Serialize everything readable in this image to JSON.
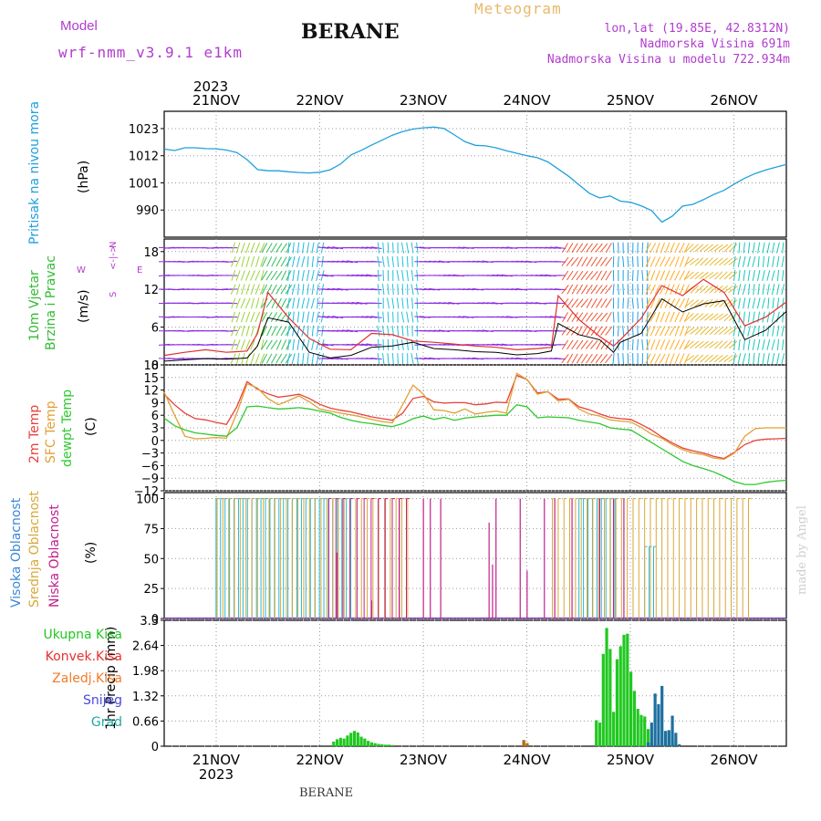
{
  "header": {
    "model_label": "Model",
    "model_run": "wrf-nmm_v3.9.1  e1km",
    "station": "BERANE",
    "meteogram": "Meteogram",
    "coords": "lon,lat (19.85E, 42.8312N)",
    "elevation": "Nadmorska Visina 691m",
    "model_elevation": "Nadmorska Visina u modelu 722.934m"
  },
  "footer": {
    "station": "BERANE",
    "credit": "made by Angel"
  },
  "colors": {
    "pressure": "#1fa0dc",
    "wind_title": "#33bb33",
    "dir_legend": "#b13ccf",
    "temp2m": "#e8403a",
    "sfc": "#e0a035",
    "dewpt": "#2ec82e",
    "high_cloud": "#2ab8d0",
    "mid_cloud": "#d8a838",
    "low_cloud": "#c0208c",
    "total": "#20c820",
    "convective": "#e83030",
    "freezing": "#f07c28",
    "snow": "#4848e0",
    "hail": "#20a8a0"
  },
  "chart_data": [
    {
      "type": "line",
      "panel": "pressure",
      "ytitle": [
        "Pritisak na nivou mora",
        "(hPa)"
      ],
      "year_label": "2023",
      "date_labels": [
        "21NOV",
        "22NOV",
        "23NOV",
        "24NOV",
        "25NOV",
        "26NOV"
      ],
      "ylim": [
        979,
        1030
      ],
      "yticks": [
        990,
        1001,
        1012,
        1023
      ],
      "x_hours": [
        0,
        3,
        6,
        9,
        12,
        15,
        18,
        21,
        24,
        27,
        30,
        33,
        36,
        39,
        42,
        45,
        48,
        51,
        54,
        57,
        60,
        63,
        66,
        69,
        72,
        75,
        78,
        81,
        84,
        87,
        90,
        93,
        96,
        99,
        102,
        105,
        108,
        111,
        114,
        117,
        120,
        123,
        126,
        129,
        132,
        135,
        138,
        141,
        144,
        147,
        150,
        153,
        156,
        159,
        162,
        165,
        168,
        171,
        174,
        177,
        180
      ],
      "values": [
        1014.7,
        1014.1,
        1015.2,
        1015.2,
        1014.9,
        1014.8,
        1014.3,
        1013.3,
        1010.4,
        1006.4,
        1005.9,
        1005.9,
        1005.5,
        1005.2,
        1005.0,
        1005.3,
        1006.3,
        1008.6,
        1012.3,
        1014.2,
        1016.3,
        1018.3,
        1020.3,
        1021.8,
        1022.8,
        1023.3,
        1023.6,
        1023.0,
        1020.4,
        1017.7,
        1016.2,
        1016.0,
        1015.2,
        1014.0,
        1013.0,
        1012.0,
        1011.2,
        1009.5,
        1006.6,
        1003.7,
        1000.2,
        996.8,
        994.9,
        995.7,
        993.6,
        993.1,
        991.7,
        989.8,
        985.1,
        987.5,
        991.6,
        992.3,
        994.2,
        996.3,
        998.0,
        1000.6,
        1002.9,
        1004.8,
        1006.2,
        1007.4,
        1008.5
      ]
    },
    {
      "type": "line",
      "panel": "wind",
      "ytitle": [
        "10m Vjetar",
        "Brzina i Pravac",
        "(m/s)"
      ],
      "direction_legend": [
        "N",
        "<-|->",
        "W",
        "E",
        "S"
      ],
      "ylim": [
        0,
        20
      ],
      "yticks": [
        0,
        6,
        12,
        18
      ],
      "x_hours": [
        0,
        6,
        12,
        18,
        24,
        27,
        30,
        36,
        42,
        48,
        54,
        60,
        66,
        72,
        78,
        84,
        90,
        96,
        102,
        108,
        112,
        114,
        120,
        126,
        130,
        132,
        138,
        144,
        150,
        156,
        162,
        168,
        174,
        180
      ],
      "mean_speed": [
        0.6,
        0.8,
        1.0,
        0.9,
        1.1,
        3.0,
        7.5,
        6.8,
        2.0,
        1.1,
        1.5,
        2.8,
        3.0,
        3.6,
        2.6,
        2.4,
        2.1,
        2.0,
        1.6,
        1.8,
        2.2,
        6.6,
        4.8,
        4.0,
        2.0,
        3.6,
        5.0,
        10.5,
        8.4,
        9.7,
        10.2,
        4.0,
        5.5,
        8.5
      ],
      "gust_speed": [
        1.5,
        2.0,
        2.4,
        2.0,
        2.2,
        5.0,
        11.5,
        7.5,
        4.2,
        2.5,
        2.4,
        5.0,
        4.8,
        3.8,
        3.6,
        3.3,
        3.0,
        2.8,
        2.4,
        2.6,
        2.8,
        11.0,
        7.2,
        4.5,
        3.0,
        4.0,
        7.4,
        12.6,
        11.0,
        13.6,
        11.5,
        6.2,
        7.6,
        10.0
      ]
    },
    {
      "type": "line",
      "panel": "temperature",
      "ytitle": [
        "2m Temp",
        "SFC Temp",
        "dewpt Temp",
        "(C)"
      ],
      "ylim": [
        -12,
        18
      ],
      "yticks": [
        -12,
        -9,
        -6,
        -3,
        0,
        3,
        6,
        9,
        12,
        15,
        18
      ],
      "x_hours": [
        0,
        3,
        6,
        9,
        12,
        15,
        18,
        21,
        24,
        27,
        30,
        33,
        36,
        39,
        42,
        45,
        48,
        51,
        54,
        57,
        60,
        63,
        66,
        69,
        72,
        75,
        78,
        81,
        84,
        87,
        90,
        93,
        96,
        99,
        102,
        105,
        108,
        111,
        114,
        117,
        120,
        123,
        126,
        129,
        132,
        135,
        138,
        141,
        144,
        147,
        150,
        153,
        156,
        159,
        162,
        165,
        168,
        171,
        174,
        177,
        180
      ],
      "series": [
        {
          "name": "2m Temp",
          "values": [
            11.0,
            8.5,
            6.5,
            5.2,
            4.9,
            4.3,
            3.8,
            8.0,
            14.0,
            12.2,
            11.1,
            10.3,
            10.6,
            11.0,
            10.0,
            8.6,
            7.7,
            7.2,
            6.8,
            6.2,
            5.6,
            5.2,
            4.8,
            6.5,
            10.0,
            10.5,
            9.2,
            8.9,
            9.0,
            9.0,
            8.5,
            8.7,
            9.1,
            9.0,
            15.5,
            14.5,
            11.3,
            11.6,
            9.8,
            9.9,
            8.0,
            7.3,
            6.3,
            5.5,
            5.2,
            5.0,
            3.8,
            2.5,
            0.8,
            -0.6,
            -1.8,
            -2.5,
            -3.0,
            -3.8,
            -4.3,
            -2.8,
            -1.0,
            0.0,
            0.3,
            0.4,
            0.5
          ]
        },
        {
          "name": "SFC Temp",
          "values": [
            11.5,
            6.0,
            1.0,
            0.4,
            0.5,
            0.7,
            0.5,
            6.5,
            13.5,
            12.5,
            10.0,
            8.5,
            9.5,
            10.6,
            9.2,
            7.5,
            7.0,
            6.5,
            6.1,
            5.6,
            5.0,
            4.5,
            4.2,
            8.5,
            13.2,
            11.0,
            7.3,
            7.1,
            6.5,
            7.5,
            6.3,
            6.7,
            7.0,
            6.5,
            16.0,
            14.5,
            11.0,
            11.6,
            9.4,
            9.8,
            7.5,
            6.3,
            5.8,
            4.9,
            4.6,
            4.4,
            3.1,
            1.5,
            0.5,
            -1.0,
            -2.2,
            -3.0,
            -3.4,
            -4.2,
            -4.5,
            -3.0,
            1.0,
            2.8,
            3.0,
            3.0,
            3.0
          ]
        },
        {
          "name": "dewpt Temp",
          "values": [
            5.3,
            3.5,
            2.5,
            1.8,
            1.5,
            1.2,
            1.0,
            3.0,
            8.0,
            8.2,
            7.8,
            7.5,
            7.6,
            7.8,
            7.5,
            7.0,
            6.5,
            5.5,
            4.8,
            4.3,
            4.0,
            3.6,
            3.3,
            4.0,
            5.2,
            5.8,
            5.0,
            5.5,
            4.8,
            5.3,
            5.6,
            5.8,
            6.0,
            6.0,
            8.5,
            8.0,
            5.4,
            5.6,
            5.5,
            5.4,
            4.8,
            4.4,
            4.0,
            3.0,
            2.7,
            2.5,
            1.0,
            -0.5,
            -2.0,
            -3.5,
            -5.0,
            -6.0,
            -6.7,
            -7.5,
            -8.6,
            -9.8,
            -10.5,
            -10.5,
            -10.0,
            -9.7,
            -9.5
          ]
        }
      ]
    },
    {
      "type": "bar",
      "panel": "clouds",
      "ytitle": [
        "Visoka Oblacnost",
        "Srednja Oblacnost",
        "Niska Oblacnost",
        "(%)"
      ],
      "ylim": [
        0,
        105
      ],
      "yticks": [
        0,
        25,
        50,
        75,
        100
      ],
      "series": [
        {
          "name": "Visoka Oblacnost",
          "segments": [
            [
              15,
              54,
              100
            ],
            [
              120,
              131,
              100
            ],
            [
              139,
              142,
              60
            ]
          ]
        },
        {
          "name": "Srednja Oblacnost",
          "segments": [
            [
              15,
              71,
              100
            ],
            [
              112,
              131,
              100
            ],
            [
              132,
              170,
              100
            ]
          ]
        },
        {
          "name": "Niska Oblacnost",
          "segments": [
            [
              47,
              70,
              100
            ]
          ]
        },
        {
          "name": "Niska Oblacnost",
          "spikes": [
            [
              50,
              55
            ],
            [
              60,
              15
            ],
            [
              68,
              100
            ],
            [
              75,
              100
            ],
            [
              77,
              100
            ],
            [
              80,
              100
            ],
            [
              94,
              80
            ],
            [
              95,
              45
            ],
            [
              96,
              100
            ],
            [
              103,
              100
            ],
            [
              105,
              40
            ],
            [
              110,
              100
            ],
            [
              113,
              100
            ],
            [
              118,
              100
            ],
            [
              126,
              100
            ],
            [
              130,
              100
            ],
            [
              133,
              100
            ]
          ]
        }
      ]
    },
    {
      "type": "bar",
      "panel": "precipitation",
      "ytitle": [
        "1hr Precip (mm)"
      ],
      "legend": [
        "Ukupna Kisa",
        "Konvek.Kisa",
        "Zaledj.Kisa",
        "Snijeg",
        "Grad"
      ],
      "ylim": [
        0,
        3.3
      ],
      "yticks": [
        0,
        0.66,
        1.32,
        1.98,
        2.64,
        3.3
      ],
      "x_labels": [
        "21NOV",
        "22NOV",
        "23NOV",
        "24NOV",
        "25NOV",
        "26NOV"
      ],
      "year_label": "2023",
      "series": [
        {
          "name": "Ukupna Kisa",
          "x": [
            49,
            50,
            51,
            52,
            53,
            54,
            55,
            56,
            57,
            58,
            59,
            60,
            61,
            62,
            63,
            64,
            65,
            66,
            104,
            105,
            125,
            126,
            127,
            128,
            129,
            130,
            131,
            132,
            133,
            134,
            135,
            136,
            137,
            138,
            139,
            140,
            141,
            146,
            147,
            148
          ],
          "values": [
            0.12,
            0.18,
            0.22,
            0.2,
            0.28,
            0.35,
            0.4,
            0.36,
            0.25,
            0.2,
            0.14,
            0.1,
            0.08,
            0.06,
            0.05,
            0.04,
            0.04,
            0.03,
            0.16,
            0.08,
            0.68,
            0.62,
            2.42,
            3.1,
            2.55,
            0.9,
            2.28,
            2.62,
            2.92,
            2.95,
            1.95,
            1.45,
            0.98,
            0.82,
            0.78,
            0.45,
            0.1,
            0.42,
            0.18,
            0.08
          ]
        },
        {
          "name": "Zaledj.Kisa",
          "x": [
            104,
            105
          ],
          "values": [
            0.16,
            0.08
          ]
        },
        {
          "name": "Snijeg",
          "x": [
            140,
            141,
            142,
            143,
            144,
            145,
            146,
            147,
            148,
            149
          ],
          "values": [
            0.1,
            0.62,
            1.38,
            1.1,
            1.58,
            0.4,
            0.42,
            0.8,
            0.35,
            0.05
          ]
        }
      ]
    }
  ]
}
